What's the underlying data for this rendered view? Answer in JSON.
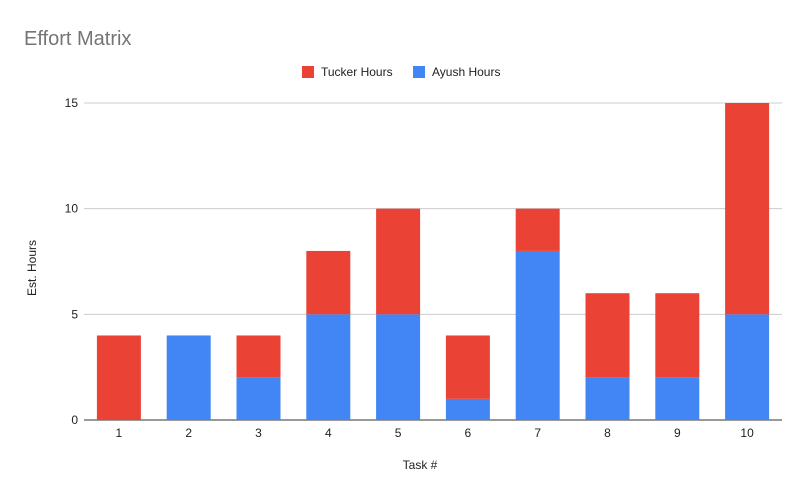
{
  "chart_data": {
    "type": "bar",
    "stacked": true,
    "title": "Effort Matrix",
    "xlabel": "Task #",
    "ylabel": "Est. Hours",
    "categories": [
      "1",
      "2",
      "3",
      "4",
      "5",
      "6",
      "7",
      "8",
      "9",
      "10"
    ],
    "series": [
      {
        "name": "Tucker Hours",
        "color": "#ea4335",
        "values": [
          4,
          0,
          2,
          3,
          5,
          3,
          2,
          4,
          4,
          10
        ]
      },
      {
        "name": "Ayush Hours",
        "color": "#4285f4",
        "values": [
          0,
          4,
          2,
          5,
          5,
          1,
          8,
          2,
          2,
          5
        ]
      }
    ],
    "stack_order_bottom_to_top": [
      "Ayush Hours",
      "Tucker Hours"
    ],
    "ylim": [
      0,
      15
    ],
    "yticks": [
      "0",
      "5",
      "10",
      "15"
    ],
    "grid": true,
    "legend_position": "top"
  }
}
